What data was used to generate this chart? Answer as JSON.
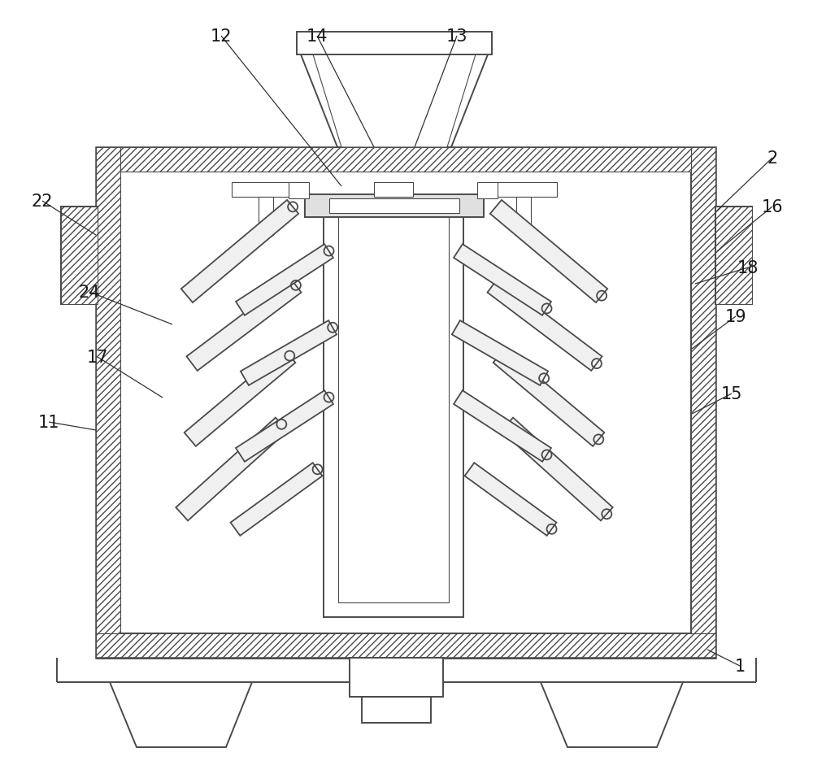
{
  "bg_color": "#ffffff",
  "line_color": "#4a4a4a",
  "fig_width": 10.0,
  "fig_height": 9.53,
  "lw_main": 1.4,
  "lw_thin": 0.8,
  "lw_thick": 1.8
}
